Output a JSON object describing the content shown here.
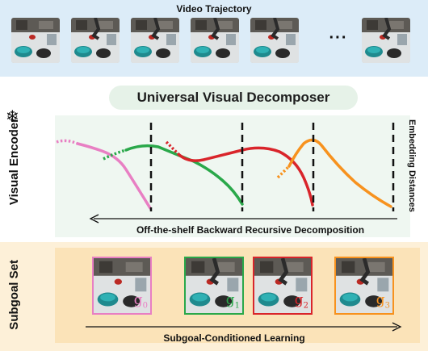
{
  "video_trajectory": {
    "title": "Video Trajectory",
    "ellipsis": "···"
  },
  "visual_encoder": {
    "side_label": "Visual Encoder",
    "frozen_icon": "snowflake-icon",
    "decomposer_title": "Universal Visual Decomposer",
    "y_axis_label": "Embedding Distances",
    "arrow_label": "Off-the-shelf Backward Recursive Decomposition"
  },
  "subgoal_set": {
    "side_label": "Subgoal Set",
    "arrow_label": "Subgoal-Conditioned Learning",
    "goals": [
      {
        "letter": "g",
        "index": "0",
        "color": "#e87fc3"
      },
      {
        "letter": "g",
        "index": "1",
        "color": "#2aa84a"
      },
      {
        "letter": "g",
        "index": "2",
        "color": "#d9252b"
      },
      {
        "letter": "g",
        "index": "3",
        "color": "#f7921e"
      }
    ]
  }
}
